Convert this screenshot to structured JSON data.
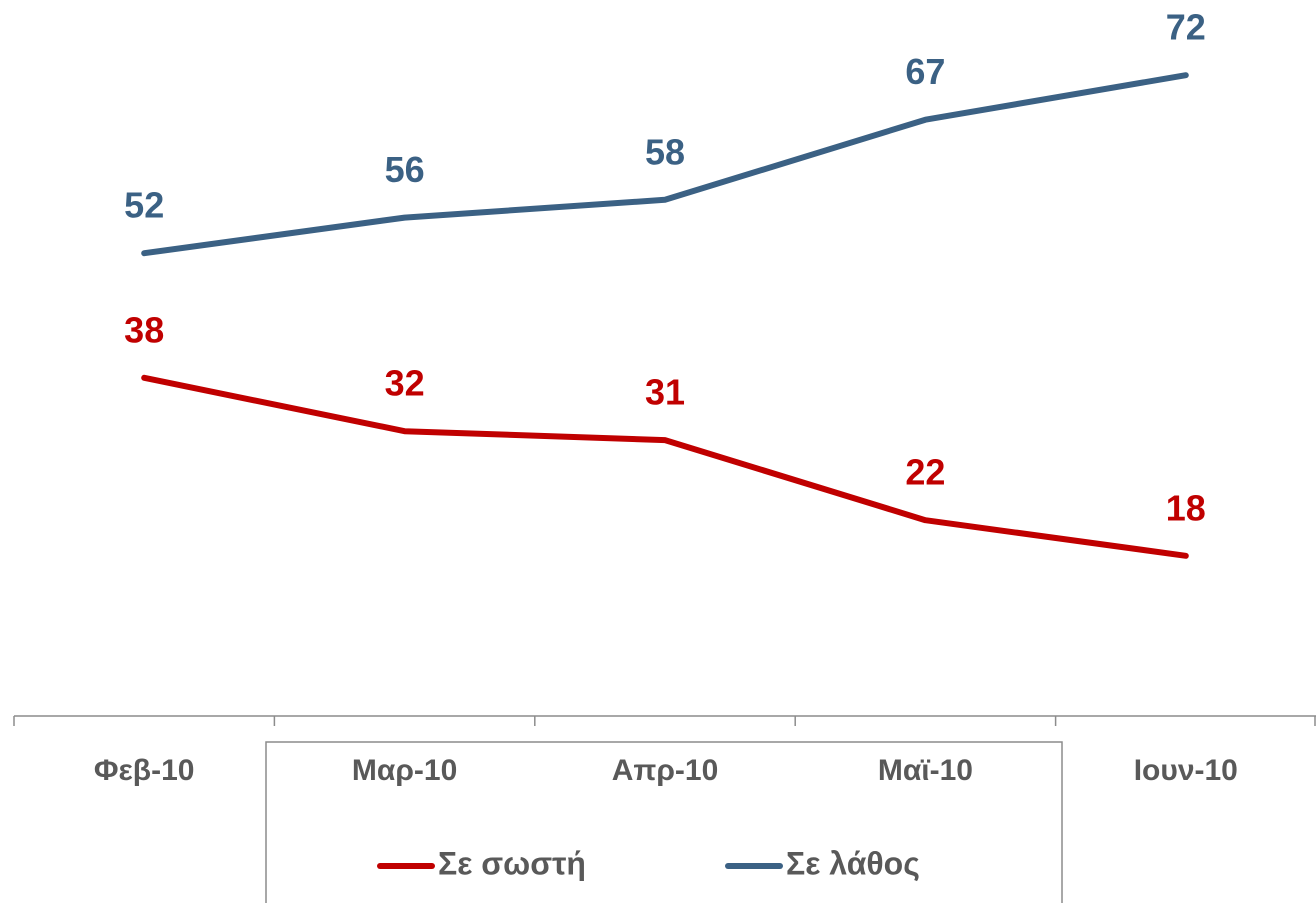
{
  "chart_data": {
    "type": "line",
    "categories": [
      "Φεβ-10",
      "Μαρ-10",
      "Απρ-10",
      "Μαϊ-10",
      "Ιουν-10"
    ],
    "series": [
      {
        "name": "Σε σωστή",
        "color": "#c00000",
        "values": [
          38,
          32,
          31,
          22,
          18
        ]
      },
      {
        "name": "Σε λάθος",
        "color": "#3b6184",
        "values": [
          52,
          56,
          58,
          67,
          72
        ]
      }
    ],
    "ylim": [
      0,
      80
    ],
    "legend": "bottom"
  }
}
